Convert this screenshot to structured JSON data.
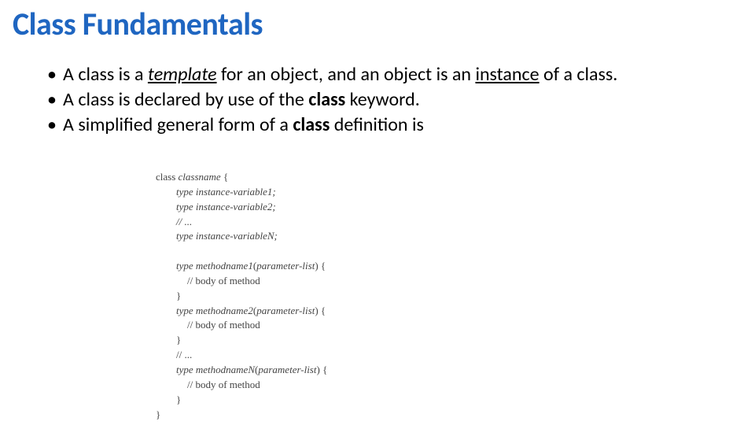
{
  "title": {
    "text": "Class Fundamentals",
    "color": "#1f66c1",
    "fontsize": 40,
    "fontweight": 700
  },
  "bullets": {
    "fontsize": 24,
    "color": "#000000",
    "items": [
      {
        "pre": "A class is a ",
        "em1": "template",
        "mid": " for an object, and an object is an ",
        "em2": "instance",
        "post": " of a class."
      },
      {
        "pre": "A class is declared by use of the ",
        "bold1": "class",
        "post": " keyword."
      },
      {
        "pre": "A simplified general form of a ",
        "bold1": "class",
        "post": " definition is"
      }
    ]
  },
  "code": {
    "fontsize": 13,
    "color": "#444444",
    "font_family": "Book Antiqua, Palatino, serif",
    "lines": [
      {
        "indent": "l0",
        "plain": "class ",
        "ital": "classname",
        "plain2": " {"
      },
      {
        "indent": "l1",
        "ital": "type instance-variable1;"
      },
      {
        "indent": "l1",
        "ital": "type instance-variable2;"
      },
      {
        "indent": "l1",
        "ital": "// ..."
      },
      {
        "indent": "l1",
        "ital": "type instance-variableN;"
      },
      {
        "indent": "l1",
        "plain": " "
      },
      {
        "indent": "l1",
        "ital": "type methodname1",
        "plain2": "(",
        "ital2": "parameter-list",
        "plain3": ") {"
      },
      {
        "indent": "l2",
        "plain": "// body of method"
      },
      {
        "indent": "l1",
        "plain": "}"
      },
      {
        "indent": "l1",
        "ital": "type methodname2",
        "plain2": "(",
        "ital2": "parameter-list",
        "plain3": ") {"
      },
      {
        "indent": "l2",
        "plain": "// body of method"
      },
      {
        "indent": "l1",
        "plain": "}"
      },
      {
        "indent": "l1",
        "plain": "// ..."
      },
      {
        "indent": "l1",
        "ital": "type methodnameN",
        "plain2": "(",
        "ital2": "parameter-list",
        "plain3": ") {"
      },
      {
        "indent": "l2",
        "plain": "// body of method"
      },
      {
        "indent": "l1",
        "plain": "}"
      },
      {
        "indent": "l0",
        "plain": "}"
      }
    ]
  }
}
